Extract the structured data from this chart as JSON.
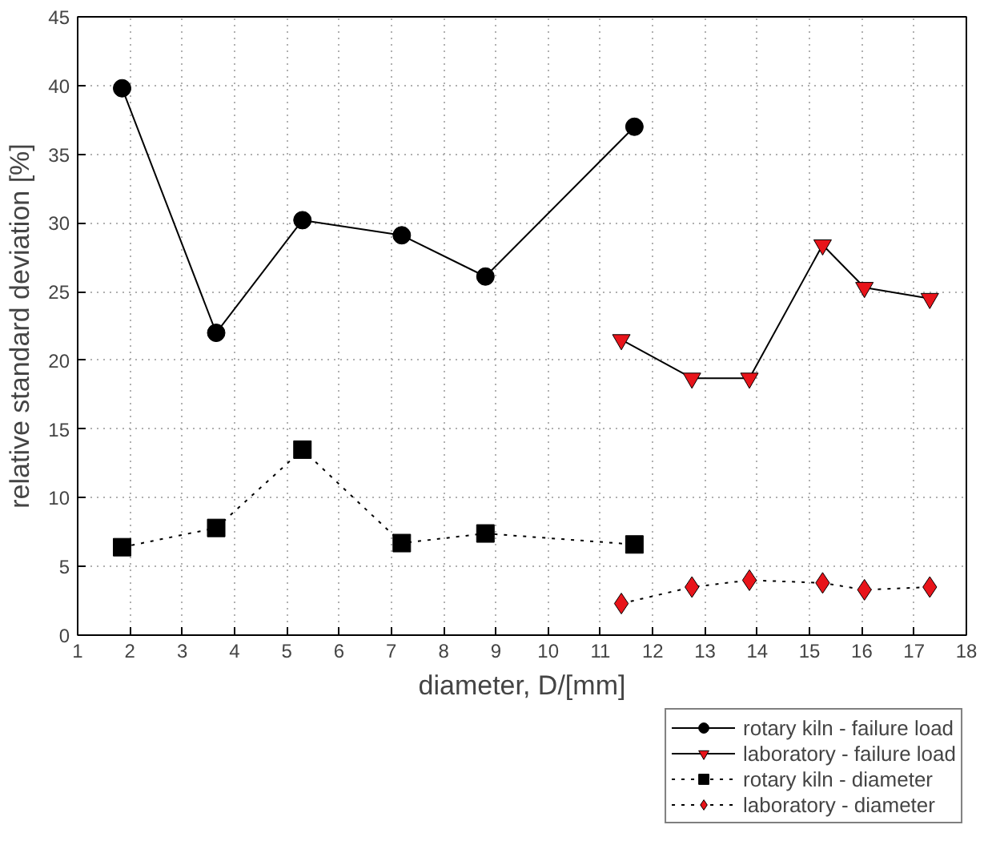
{
  "chart_data": {
    "type": "line",
    "xlabel": "diameter, D/[mm]",
    "ylabel": "relative standard deviation [%]",
    "xlim": [
      1,
      18
    ],
    "xticks": [
      1,
      2,
      3,
      4,
      5,
      6,
      7,
      8,
      9,
      10,
      11,
      12,
      13,
      14,
      15,
      16,
      17,
      18
    ],
    "ylim": [
      0,
      45
    ],
    "yticks": [
      0,
      5,
      10,
      15,
      20,
      25,
      30,
      35,
      40,
      45
    ],
    "grid": true,
    "legend": "bottom right",
    "series": [
      {
        "name": "rotary kiln - failure load",
        "color": "#000000",
        "marker": "circle",
        "line_style": "solid",
        "x": [
          1.85,
          3.65,
          5.3,
          7.2,
          8.8,
          11.65
        ],
        "values": [
          39.8,
          22,
          30.2,
          29.1,
          26.1,
          37
        ]
      },
      {
        "name": "laboratory - failure load",
        "color": "#e8141a",
        "marker": "triangle",
        "line_style": "solid",
        "x": [
          11.4,
          12.75,
          13.85,
          15.25,
          16.05,
          17.3
        ],
        "values": [
          21.5,
          18.7,
          18.7,
          28.4,
          25.3,
          24.5
        ]
      },
      {
        "name": "rotary kiln - diameter",
        "color": "#000000",
        "marker": "square",
        "line_style": "dotted",
        "x": [
          1.85,
          3.65,
          5.3,
          7.2,
          8.8,
          11.65
        ],
        "values": [
          6.4,
          7.8,
          13.5,
          6.7,
          7.4,
          6.6
        ]
      },
      {
        "name": "laboratory - diameter",
        "color": "#e8141a",
        "marker": "diamond",
        "line_style": "dotted",
        "x": [
          11.4,
          12.75,
          13.85,
          15.25,
          16.05,
          17.3
        ],
        "values": [
          2.3,
          3.5,
          4,
          3.8,
          3.3,
          3.5
        ]
      }
    ]
  }
}
